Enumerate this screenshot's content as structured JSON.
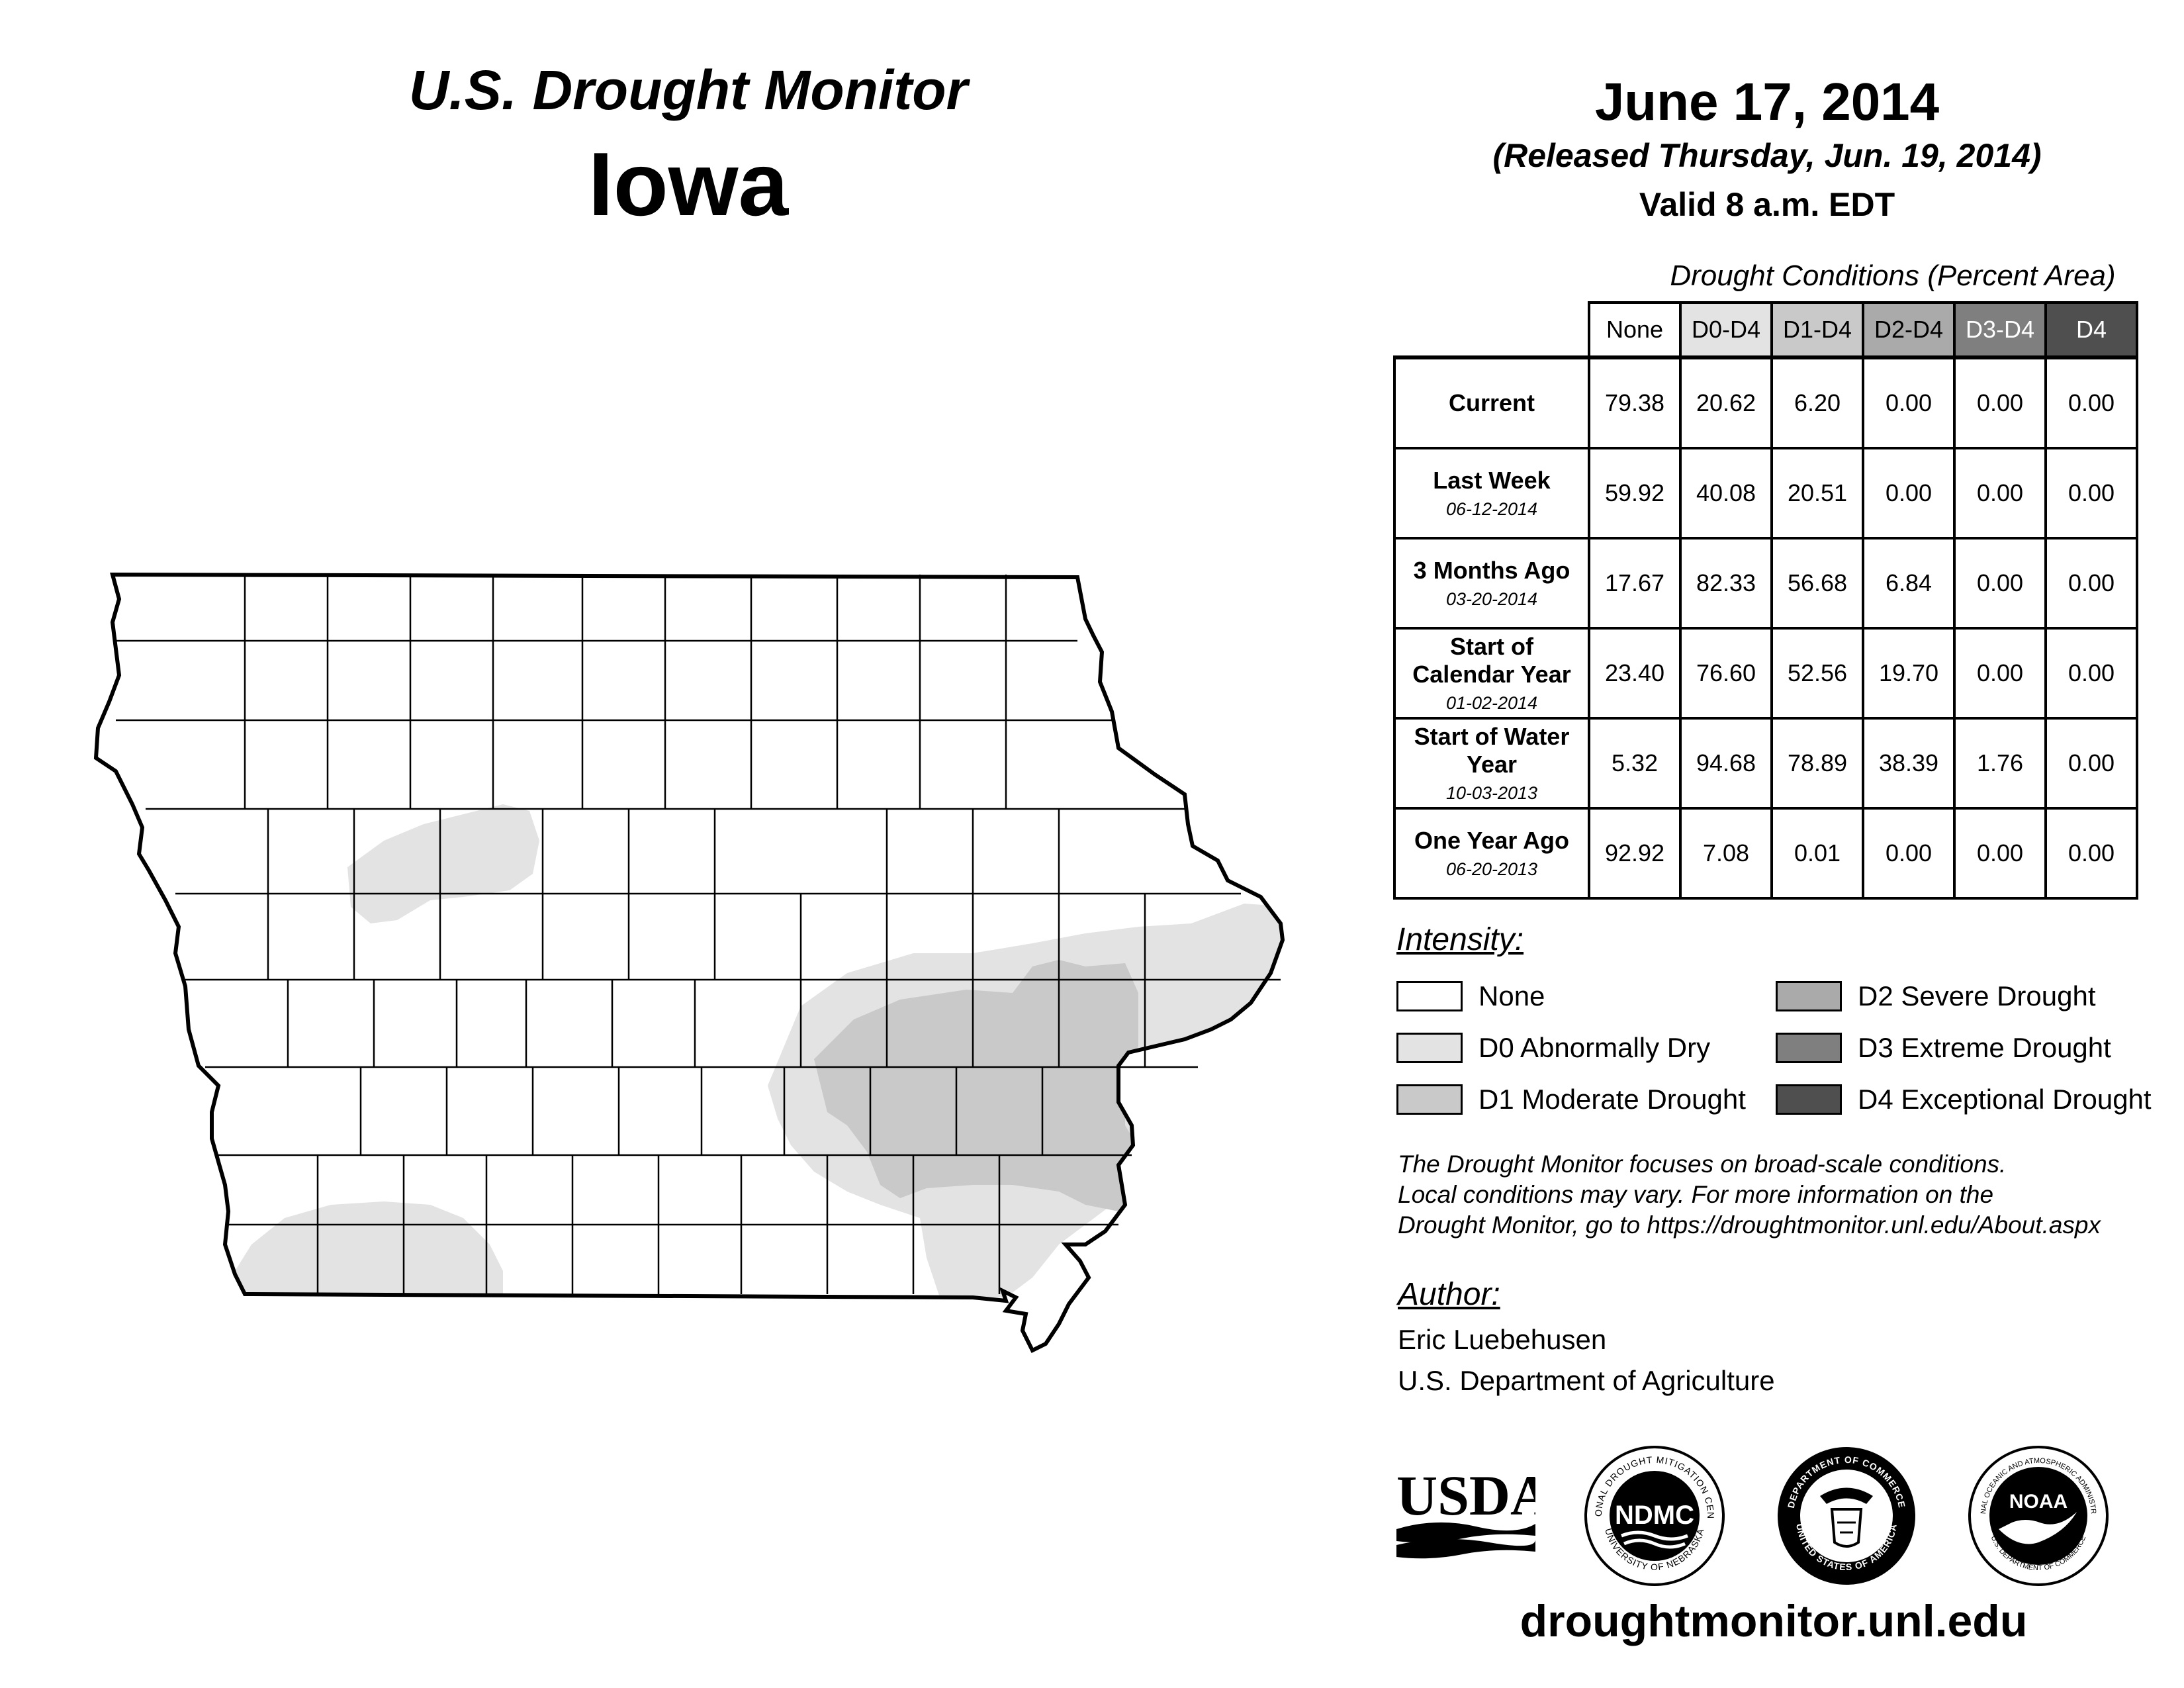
{
  "header": {
    "title": "U.S. Drought Monitor",
    "state": "Iowa",
    "date": "June 17, 2014",
    "released": "(Released Thursday, Jun. 19, 2014)",
    "valid": "Valid 8 a.m. EDT"
  },
  "conditions": {
    "caption": "Drought Conditions (Percent Area)",
    "columns": [
      "None",
      "D0-D4",
      "D1-D4",
      "D2-D4",
      "D3-D4",
      "D4"
    ],
    "rows": [
      {
        "label": "Current",
        "date": "",
        "values": [
          "79.38",
          "20.62",
          "6.20",
          "0.00",
          "0.00",
          "0.00"
        ]
      },
      {
        "label": "Last Week",
        "date": "06-12-2014",
        "values": [
          "59.92",
          "40.08",
          "20.51",
          "0.00",
          "0.00",
          "0.00"
        ]
      },
      {
        "label": "3 Months Ago",
        "date": "03-20-2014",
        "values": [
          "17.67",
          "82.33",
          "56.68",
          "6.84",
          "0.00",
          "0.00"
        ]
      },
      {
        "label": "Start of Calendar Year",
        "date": "01-02-2014",
        "values": [
          "23.40",
          "76.60",
          "52.56",
          "19.70",
          "0.00",
          "0.00"
        ]
      },
      {
        "label": "Start of Water Year",
        "date": "10-03-2013",
        "values": [
          "5.32",
          "94.68",
          "78.89",
          "38.39",
          "1.76",
          "0.00"
        ]
      },
      {
        "label": "One Year Ago",
        "date": "06-20-2013",
        "values": [
          "92.92",
          "7.08",
          "0.01",
          "0.00",
          "0.00",
          "0.00"
        ]
      }
    ]
  },
  "legend": {
    "title": "Intensity:",
    "items": [
      {
        "label": "None",
        "color": "#ffffff"
      },
      {
        "label": "D0 Abnormally Dry",
        "color": "#e3e3e3"
      },
      {
        "label": "D1 Moderate Drought",
        "color": "#c9c9c9"
      },
      {
        "label": "D2 Severe Drought",
        "color": "#aaaaaa"
      },
      {
        "label": "D3 Extreme Drought",
        "color": "#7f7f7f"
      },
      {
        "label": "D4 Exceptional Drought",
        "color": "#4f4f4f"
      }
    ]
  },
  "disclaimer": {
    "line1": "The Drought Monitor focuses on broad-scale conditions.",
    "line2": "Local conditions may vary. For more information on the",
    "line3": "Drought Monitor, go to https://droughtmonitor.unl.edu/About.aspx"
  },
  "author": {
    "title": "Author:",
    "name": "Eric Luebehusen",
    "org": "U.S. Department of Agriculture"
  },
  "logos": {
    "usda": "USDA",
    "ndmc": "NDMC",
    "ndmc_ring_top": "NATIONAL DROUGHT MITIGATION CENTER",
    "ndmc_ring_bottom": "UNIVERSITY OF NEBRASKA",
    "doc_ring": "DEPARTMENT OF COMMERCE",
    "doc_ring_bottom": "UNITED STATES OF AMERICA",
    "noaa": "NOAA",
    "noaa_ring": "NATIONAL OCEANIC AND ATMOSPHERIC ADMINISTRATION",
    "noaa_ring_bottom": "U.S. DEPARTMENT OF COMMERCE"
  },
  "site": "droughtmonitor.unl.edu"
}
